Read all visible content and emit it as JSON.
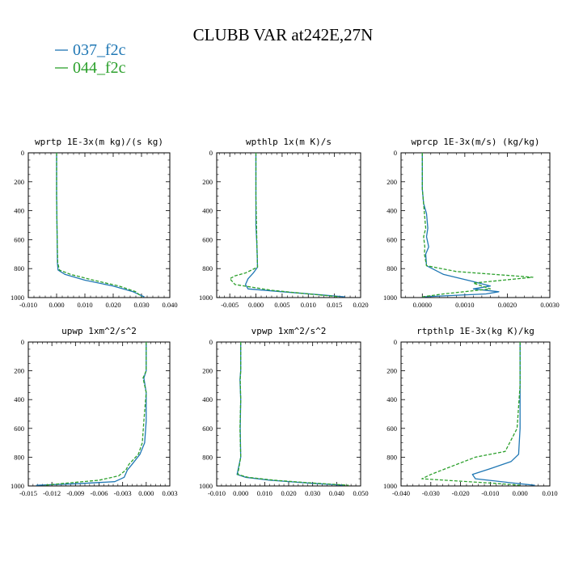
{
  "figure": {
    "title": "CLUBB VAR at242E,27N",
    "legend": [
      {
        "label": "037_f2c",
        "color": "#1f77b4",
        "dash": "solid"
      },
      {
        "label": "044_f2c",
        "color": "#2ca02c",
        "dash": "dashed"
      }
    ]
  },
  "chart_data": [
    {
      "type": "line",
      "title": "wprtp  1E-3x(m kg)/(s kg)",
      "xlim": [
        -0.01,
        0.04
      ],
      "xticks": [
        -0.01,
        0.0,
        0.01,
        0.02,
        0.03,
        0.04
      ],
      "xticklabels": [
        "-0.010",
        "0.000",
        "0.010",
        "0.020",
        "0.030",
        "0.040"
      ],
      "ylim": [
        1000,
        0
      ],
      "yticks": [
        0,
        200,
        400,
        600,
        800,
        1000
      ],
      "series": [
        {
          "name": "037_f2c",
          "x": [
            0.0,
            0.0,
            0.0002,
            0.0003,
            0.0005,
            0.003,
            0.01,
            0.02,
            0.027,
            0.031
          ],
          "y": [
            0,
            300,
            600,
            760,
            810,
            840,
            880,
            920,
            960,
            995
          ]
        },
        {
          "name": "044_f2c",
          "x": [
            0.0,
            0.0,
            0.0002,
            0.0004,
            0.001,
            0.005,
            0.013,
            0.022,
            0.028,
            0.03
          ],
          "y": [
            0,
            300,
            600,
            760,
            810,
            840,
            880,
            920,
            960,
            995
          ]
        }
      ]
    },
    {
      "type": "line",
      "title": "wpthlp  1x(m K)/s",
      "xlim": [
        -0.0075,
        0.02
      ],
      "xticks": [
        -0.005,
        0.0,
        0.005,
        0.01,
        0.015,
        0.02
      ],
      "xticklabels": [
        "-0.005",
        "0.000",
        "0.005",
        "0.010",
        "0.015",
        "0.020"
      ],
      "ylim": [
        1000,
        0
      ],
      "yticks": [
        0,
        200,
        400,
        600,
        800,
        1000
      ],
      "series": [
        {
          "name": "037_f2c",
          "x": [
            0.0,
            0.0,
            0.0,
            0.0002,
            0.0003,
            -0.0005,
            -0.0015,
            -0.002,
            -0.0015,
            0.005,
            0.012,
            0.017
          ],
          "y": [
            0,
            300,
            500,
            650,
            790,
            830,
            870,
            910,
            940,
            960,
            980,
            995
          ]
        },
        {
          "name": "044_f2c",
          "x": [
            0.0,
            0.0,
            0.0001,
            0.0002,
            0.0003,
            -0.002,
            -0.004,
            -0.005,
            -0.004,
            0.003,
            0.01,
            0.016
          ],
          "y": [
            0,
            300,
            500,
            650,
            790,
            830,
            850,
            870,
            910,
            950,
            975,
            995
          ]
        }
      ]
    },
    {
      "type": "line",
      "title": "wprcp  1E-3x(m/s) (kg/kg)",
      "xlim": [
        -0.0005,
        0.003
      ],
      "xticks": [
        0.0,
        0.001,
        0.002,
        0.003
      ],
      "xticklabels": [
        "0.0000",
        "0.0010",
        "0.0020",
        "0.0030"
      ],
      "ylim": [
        1000,
        0
      ],
      "yticks": [
        0,
        200,
        400,
        600,
        800,
        1000
      ],
      "series": [
        {
          "name": "037_f2c",
          "x": [
            0.0,
            0.0,
            3e-05,
            0.0001,
            0.00013,
            0.0001,
            0.00015,
            8e-05,
            0.0001,
            0.0005,
            0.0012,
            0.0016,
            0.0012,
            0.0018,
            0.0015,
            0.0
          ],
          "y": [
            0,
            250,
            350,
            420,
            520,
            580,
            650,
            700,
            780,
            840,
            890,
            920,
            940,
            960,
            975,
            995
          ]
        },
        {
          "name": "044_f2c",
          "x": [
            0.0,
            0.0,
            3e-05,
            5e-05,
            8e-05,
            3e-05,
            6e-05,
            5e-05,
            0.0001,
            0.0008,
            0.0026,
            0.0012,
            0.0016,
            0.0005,
            0.0
          ],
          "y": [
            0,
            250,
            350,
            420,
            520,
            580,
            650,
            700,
            780,
            820,
            860,
            900,
            940,
            975,
            995
          ]
        }
      ]
    },
    {
      "type": "line",
      "title": "upwp  1xm^2/s^2",
      "xlim": [
        -0.015,
        0.003
      ],
      "xticks": [
        -0.015,
        -0.012,
        -0.009,
        -0.006,
        -0.003,
        0.0,
        0.003
      ],
      "xticklabels": [
        "-0.015",
        "-0.012",
        "-0.009",
        "-0.006",
        "-0.003",
        "0.000",
        "0.003"
      ],
      "ylim": [
        1000,
        0
      ],
      "yticks": [
        0,
        200,
        400,
        600,
        800,
        1000
      ],
      "series": [
        {
          "name": "037_f2c",
          "x": [
            0.0,
            0.0,
            -0.0003,
            0.0,
            0.0,
            -0.0002,
            -0.0008,
            -0.0018,
            -0.0024,
            -0.0028,
            -0.004,
            -0.009,
            -0.014
          ],
          "y": [
            0,
            200,
            250,
            350,
            550,
            700,
            780,
            850,
            890,
            940,
            970,
            985,
            995
          ]
        },
        {
          "name": "044_f2c",
          "x": [
            0.0,
            0.0,
            -0.0004,
            0.0,
            -0.0003,
            -0.0005,
            -0.001,
            -0.0022,
            -0.0026,
            -0.0035,
            -0.006,
            -0.01,
            -0.013
          ],
          "y": [
            0,
            200,
            250,
            350,
            550,
            700,
            780,
            850,
            890,
            930,
            960,
            980,
            995
          ]
        }
      ]
    },
    {
      "type": "line",
      "title": "vpwp  1xm^2/s^2",
      "xlim": [
        -0.01,
        0.05
      ],
      "xticks": [
        -0.01,
        0.0,
        0.01,
        0.02,
        0.03,
        0.04,
        0.05
      ],
      "xticklabels": [
        "-0.010",
        "0.000",
        "0.010",
        "0.020",
        "0.030",
        "0.040",
        "0.050"
      ],
      "ylim": [
        1000,
        0
      ],
      "yticks": [
        0,
        200,
        400,
        600,
        800,
        1000
      ],
      "series": [
        {
          "name": "037_f2c",
          "x": [
            0.0,
            0.0,
            -0.0003,
            0.0,
            -0.0002,
            0.0,
            -0.001,
            -0.0015,
            0.002,
            0.012,
            0.028,
            0.043
          ],
          "y": [
            0,
            200,
            260,
            400,
            600,
            800,
            880,
            920,
            940,
            960,
            980,
            995
          ]
        },
        {
          "name": "044_f2c",
          "x": [
            0.0,
            0.0,
            -0.0002,
            0.0,
            -0.0003,
            0.0,
            -0.0008,
            -0.0012,
            0.003,
            0.014,
            0.03,
            0.045
          ],
          "y": [
            0,
            200,
            260,
            400,
            600,
            800,
            880,
            920,
            940,
            960,
            980,
            995
          ]
        }
      ]
    },
    {
      "type": "line",
      "title": "rtpthlp  1E-3x(kg K)/kg",
      "xlim": [
        -0.04,
        0.01
      ],
      "xticks": [
        -0.04,
        -0.03,
        -0.02,
        -0.01,
        0.0,
        0.01
      ],
      "xticklabels": [
        "-0.040",
        "-0.030",
        "-0.020",
        "-0.010",
        "0.000",
        "0.010"
      ],
      "ylim": [
        1000,
        0
      ],
      "yticks": [
        0,
        200,
        400,
        600,
        800,
        1000
      ],
      "series": [
        {
          "name": "037_f2c",
          "x": [
            0.0,
            0.0,
            0.0,
            -0.0005,
            -0.003,
            -0.01,
            -0.016,
            -0.015,
            0.0,
            0.005
          ],
          "y": [
            0,
            300,
            600,
            780,
            830,
            880,
            920,
            950,
            985,
            995
          ]
        },
        {
          "name": "044_f2c",
          "x": [
            0.0,
            0.0,
            -0.001,
            -0.005,
            -0.015,
            -0.02,
            -0.025,
            -0.03,
            -0.033,
            -0.01,
            0.0
          ],
          "y": [
            0,
            300,
            600,
            760,
            800,
            840,
            880,
            920,
            950,
            980,
            995
          ]
        }
      ]
    }
  ]
}
